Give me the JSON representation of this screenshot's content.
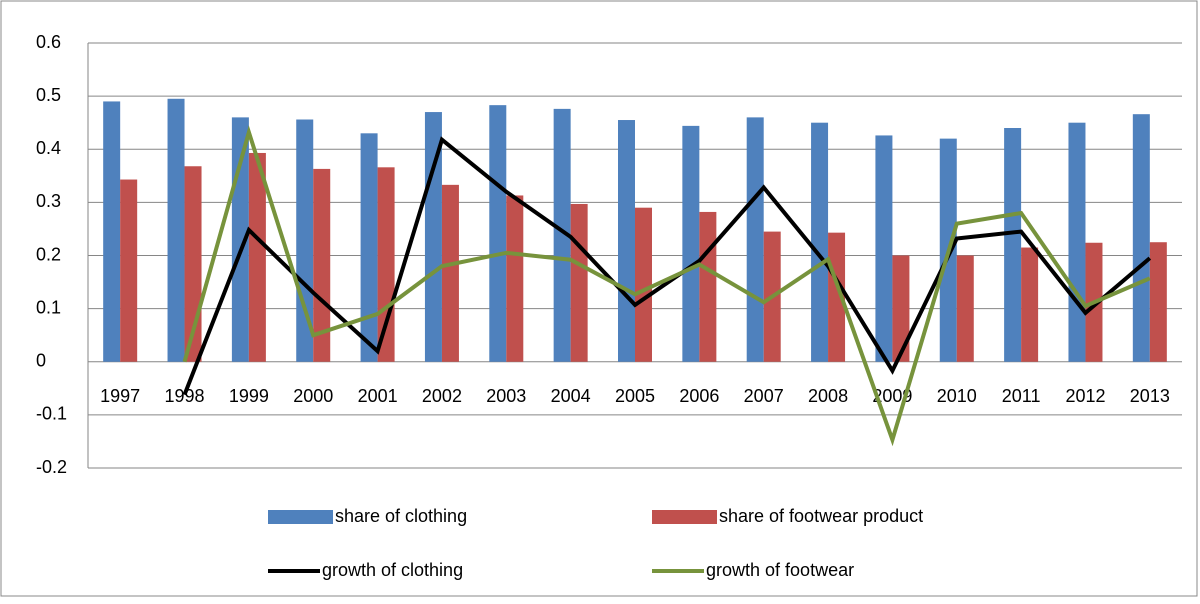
{
  "chart_data": {
    "type": "bar",
    "categories": [
      "1997",
      "1998",
      "1999",
      "2000",
      "2001",
      "2002",
      "2003",
      "2004",
      "2005",
      "2006",
      "2007",
      "2008",
      "2009",
      "2010",
      "2011",
      "2012",
      "2013"
    ],
    "series": [
      {
        "name": "share of clothing",
        "type": "bar",
        "color": "#4f81bd",
        "values": [
          0.49,
          0.495,
          0.46,
          0.456,
          0.43,
          0.47,
          0.483,
          0.476,
          0.455,
          0.444,
          0.46,
          0.45,
          0.426,
          0.42,
          0.44,
          0.45,
          0.466
        ]
      },
      {
        "name": "share of footwear product",
        "type": "bar",
        "color": "#c0504d",
        "values": [
          0.343,
          0.368,
          0.393,
          0.363,
          0.366,
          0.333,
          0.313,
          0.297,
          0.29,
          0.282,
          0.245,
          0.243,
          0.2,
          0.2,
          0.215,
          0.224,
          0.225
        ]
      },
      {
        "name": "growth of clothing",
        "type": "line",
        "color": "#000000",
        "values": [
          null,
          -0.062,
          0.248,
          0.13,
          0.02,
          0.418,
          0.32,
          0.235,
          0.107,
          0.19,
          0.328,
          0.18,
          -0.017,
          0.232,
          0.245,
          0.092,
          0.195
        ]
      },
      {
        "name": "growth of footwear",
        "type": "line",
        "color": "#77933c",
        "values": [
          null,
          0.0,
          0.432,
          0.05,
          0.09,
          0.18,
          0.205,
          0.192,
          0.127,
          0.183,
          0.112,
          0.193,
          -0.147,
          0.26,
          0.28,
          0.105,
          0.157
        ]
      }
    ],
    "ylim": [
      -0.2,
      0.6
    ],
    "yticks": [
      -0.2,
      -0.1,
      0,
      0.1,
      0.2,
      0.3,
      0.4,
      0.5,
      0.6
    ],
    "grid": true,
    "legend": "bottom"
  }
}
